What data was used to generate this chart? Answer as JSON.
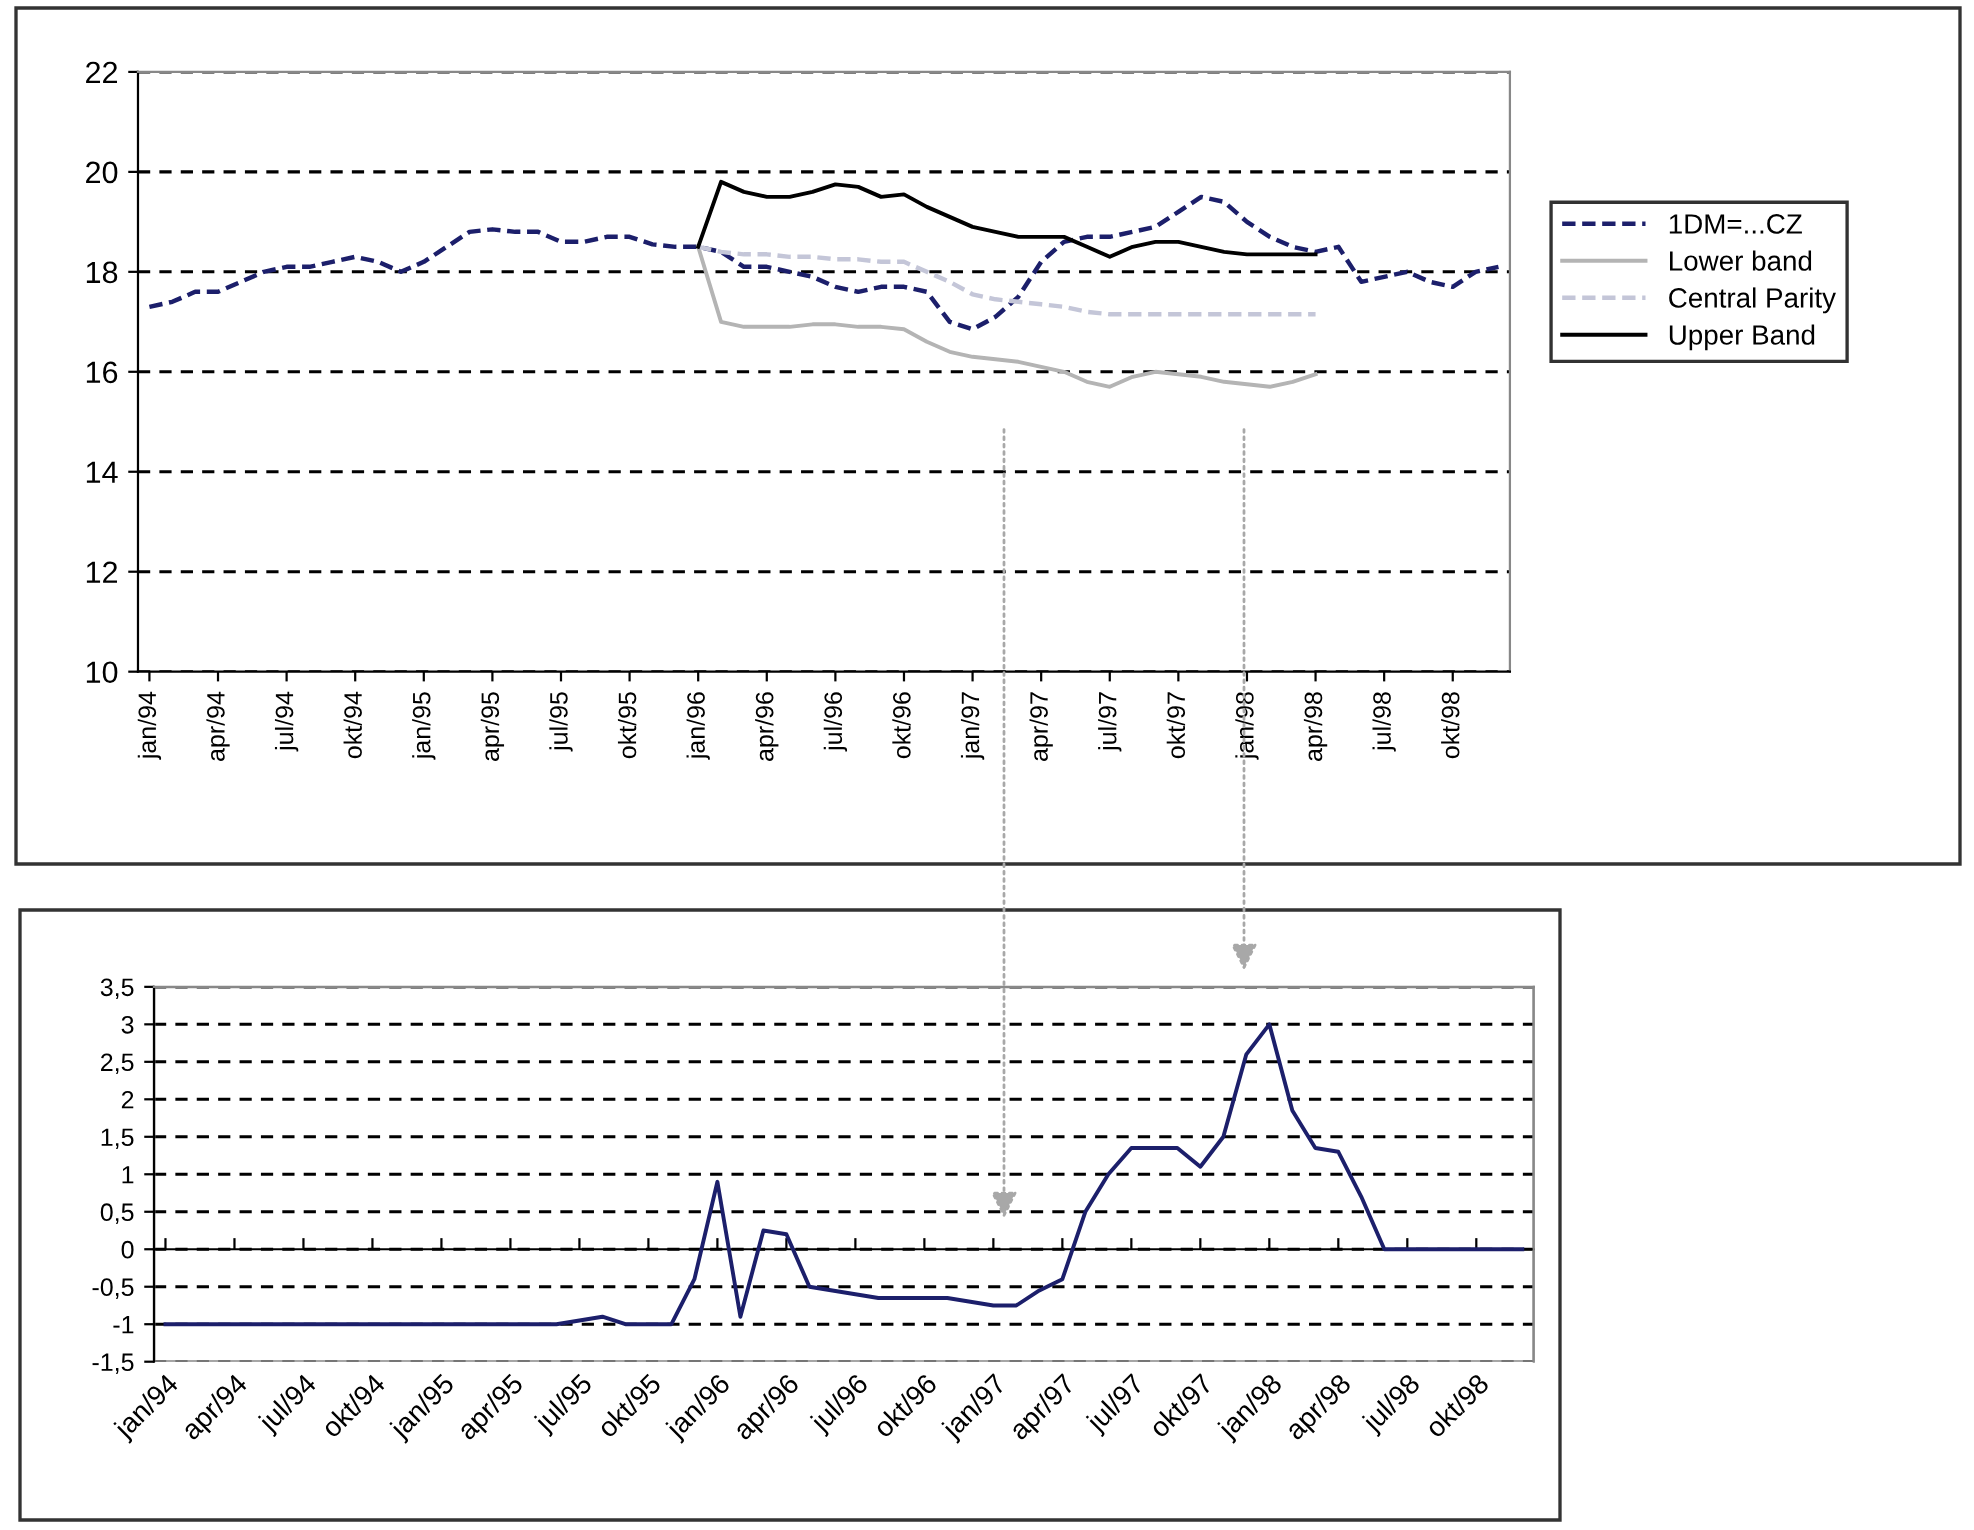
{
  "chart_data": [
    {
      "type": "line",
      "categories": [
        "jan/94",
        null,
        null,
        "apr/94",
        null,
        null,
        "jul/94",
        null,
        null,
        "okt/94",
        null,
        null,
        "jan/95",
        null,
        null,
        "apr/95",
        null,
        null,
        "jul/95",
        null,
        null,
        "okt/95",
        null,
        null,
        "jan/96",
        null,
        null,
        "apr/96",
        null,
        null,
        "jul/96",
        null,
        null,
        "okt/96",
        null,
        null,
        "jan/97",
        null,
        null,
        "apr/97",
        null,
        null,
        "jul/97",
        null,
        null,
        "okt/97",
        null,
        null,
        "jan/98",
        null,
        null,
        "apr/98",
        null,
        null,
        "jul/98",
        null,
        null,
        "okt/98",
        null,
        null
      ],
      "series": [
        {
          "name": "1DM=...CZ",
          "color": "#1c1f6b",
          "line_style": "dashed",
          "values": [
            17.3,
            17.4,
            17.6,
            17.6,
            17.8,
            18.0,
            18.1,
            18.1,
            18.2,
            18.3,
            18.2,
            18.0,
            18.2,
            18.5,
            18.8,
            18.85,
            18.8,
            18.8,
            18.6,
            18.6,
            18.7,
            18.7,
            18.55,
            18.5,
            18.5,
            18.4,
            18.1,
            18.1,
            18.0,
            17.9,
            17.7,
            17.6,
            17.7,
            17.7,
            17.6,
            17.0,
            16.85,
            17.1,
            17.5,
            18.2,
            18.6,
            18.7,
            18.7,
            18.8,
            18.9,
            19.2,
            19.5,
            19.4,
            19.0,
            18.7,
            18.5,
            18.4,
            18.5,
            17.8,
            17.9,
            18.0,
            17.8,
            17.7,
            18.0,
            18.1
          ]
        },
        {
          "name": "Lower band",
          "color": "#b4b4b4",
          "line_style": "solid",
          "values": [
            null,
            null,
            null,
            null,
            null,
            null,
            null,
            null,
            null,
            null,
            null,
            null,
            null,
            null,
            null,
            null,
            null,
            null,
            null,
            null,
            null,
            null,
            null,
            null,
            18.5,
            17.0,
            16.9,
            16.9,
            16.9,
            16.95,
            16.95,
            16.9,
            16.9,
            16.85,
            16.6,
            16.4,
            16.3,
            16.25,
            16.2,
            16.1,
            16.0,
            15.8,
            15.7,
            15.9,
            16.0,
            15.95,
            15.9,
            15.8,
            15.75,
            15.7,
            15.8,
            15.95,
            null,
            null,
            null,
            null,
            null,
            null,
            null,
            null
          ]
        },
        {
          "name": "Central Parity",
          "color": "#c4c6d8",
          "line_style": "dashed",
          "values": [
            null,
            null,
            null,
            null,
            null,
            null,
            null,
            null,
            null,
            null,
            null,
            null,
            null,
            null,
            null,
            null,
            null,
            null,
            null,
            null,
            null,
            null,
            null,
            null,
            18.5,
            18.4,
            18.35,
            18.35,
            18.3,
            18.3,
            18.25,
            18.25,
            18.2,
            18.2,
            18.0,
            17.8,
            17.55,
            17.45,
            17.4,
            17.35,
            17.3,
            17.2,
            17.15,
            17.15,
            17.15,
            17.15,
            17.15,
            17.15,
            17.15,
            17.15,
            17.15,
            17.15,
            null,
            null,
            null,
            null,
            null,
            null,
            null,
            null
          ]
        },
        {
          "name": "Upper Band",
          "color": "#000000",
          "line_style": "solid",
          "values": [
            null,
            null,
            null,
            null,
            null,
            null,
            null,
            null,
            null,
            null,
            null,
            null,
            null,
            null,
            null,
            null,
            null,
            null,
            null,
            null,
            null,
            null,
            null,
            null,
            18.5,
            19.8,
            19.6,
            19.5,
            19.5,
            19.6,
            19.75,
            19.7,
            19.5,
            19.55,
            19.3,
            19.1,
            18.9,
            18.8,
            18.7,
            18.7,
            18.7,
            18.5,
            18.3,
            18.5,
            18.6,
            18.6,
            18.5,
            18.4,
            18.35,
            18.35,
            18.35,
            18.35,
            null,
            null,
            null,
            null,
            null,
            null,
            null,
            null
          ]
        }
      ],
      "ylim": [
        10,
        22
      ],
      "yticks": [
        10,
        12,
        14,
        16,
        18,
        20,
        22
      ],
      "grid": "y",
      "legend": "right"
    },
    {
      "type": "line",
      "categories": [
        "jan/94",
        null,
        null,
        "apr/94",
        null,
        null,
        "jul/94",
        null,
        null,
        "okt/94",
        null,
        null,
        "jan/95",
        null,
        null,
        "apr/95",
        null,
        null,
        "jul/95",
        null,
        null,
        "okt/95",
        null,
        null,
        "jan/96",
        null,
        null,
        "apr/96",
        null,
        null,
        "jul/96",
        null,
        null,
        "okt/96",
        null,
        null,
        "jan/97",
        null,
        null,
        "apr/97",
        null,
        null,
        "jul/97",
        null,
        null,
        "okt/97",
        null,
        null,
        "jan/98",
        null,
        null,
        "apr/98",
        null,
        null,
        "jul/98",
        null,
        null,
        "okt/98",
        null,
        null
      ],
      "series": [
        {
          "color": "#1c1f6b",
          "values": [
            -1,
            -1,
            -1,
            -1,
            -1,
            -1,
            -1,
            -1,
            -1,
            -1,
            -1,
            -1,
            -1,
            -1,
            -1,
            -1,
            -1,
            -1,
            -0.95,
            -0.9,
            -1,
            -1,
            -1,
            -0.4,
            0.9,
            -0.9,
            0.25,
            0.2,
            -0.5,
            -0.55,
            -0.6,
            -0.65,
            -0.65,
            -0.65,
            -0.65,
            -0.7,
            -0.75,
            -0.75,
            -0.55,
            -0.4,
            0.5,
            1.0,
            1.35,
            1.35,
            1.35,
            1.1,
            1.5,
            2.6,
            3.0,
            1.85,
            1.35,
            1.3,
            0.7,
            0,
            0,
            0,
            0,
            0,
            0,
            0
          ]
        }
      ],
      "ylim": [
        -1.5,
        3.5
      ],
      "yticks": [
        {
          "value": -1.5,
          "label": "-1,5"
        },
        {
          "value": -1,
          "label": "-1"
        },
        {
          "value": -0.5,
          "label": "-0,5"
        },
        0,
        {
          "value": 0.5,
          "label": "0,5"
        },
        1,
        {
          "value": 1.5,
          "label": "1,5"
        },
        2,
        {
          "value": 2.5,
          "label": "2,5"
        },
        3,
        {
          "value": 3.5,
          "label": "3,5"
        }
      ],
      "grid": "y"
    }
  ]
}
